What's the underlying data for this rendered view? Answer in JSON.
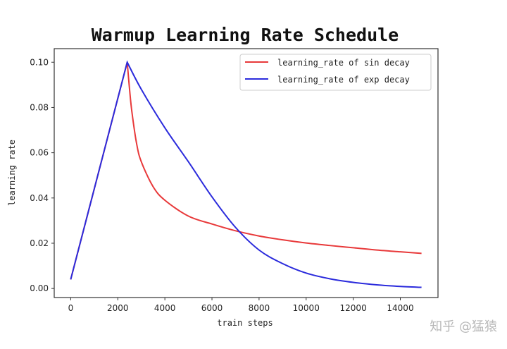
{
  "chart_data": {
    "type": "line",
    "title": "Warmup Learning Rate Schedule",
    "xlabel": "train steps",
    "ylabel": "learning rate",
    "xlim": [
      -700,
      15600
    ],
    "ylim": [
      -0.004,
      0.106
    ],
    "xticks": [
      0,
      2000,
      4000,
      6000,
      8000,
      10000,
      12000,
      14000
    ],
    "xtick_labels": [
      "0",
      "2000",
      "4000",
      "6000",
      "8000",
      "10000",
      "12000",
      "14000"
    ],
    "yticks": [
      0.0,
      0.02,
      0.04,
      0.06,
      0.08,
      0.1
    ],
    "ytick_labels": [
      "0.00",
      "0.02",
      "0.04",
      "0.06",
      "0.08",
      "0.10"
    ],
    "grid": false,
    "legend_position": "top-right",
    "series": [
      {
        "name": "learning_rate of sin decay",
        "color": "#e8393a",
        "x": [
          0,
          2400,
          2500,
          2600,
          2800,
          3000,
          3500,
          4000,
          5000,
          6000,
          7000,
          8000,
          9000,
          10000,
          11000,
          12000,
          13000,
          14000,
          14900
        ],
        "y": [
          0.004,
          0.1,
          0.088,
          0.078,
          0.064,
          0.056,
          0.045,
          0.039,
          0.032,
          0.0285,
          0.0255,
          0.0232,
          0.0215,
          0.0201,
          0.019,
          0.018,
          0.017,
          0.0162,
          0.0155
        ]
      },
      {
        "name": "learning_rate of exp decay",
        "color": "#2b2bdc",
        "x": [
          0,
          2400,
          3000,
          4000,
          5000,
          6000,
          7000,
          8000,
          9000,
          10000,
          11000,
          12000,
          13000,
          14000,
          14900
        ],
        "y": [
          0.004,
          0.1,
          0.088,
          0.071,
          0.056,
          0.0405,
          0.027,
          0.017,
          0.011,
          0.0068,
          0.0043,
          0.0027,
          0.0016,
          0.0009,
          0.0005
        ]
      }
    ]
  },
  "watermark": "知乎 @猛猿"
}
